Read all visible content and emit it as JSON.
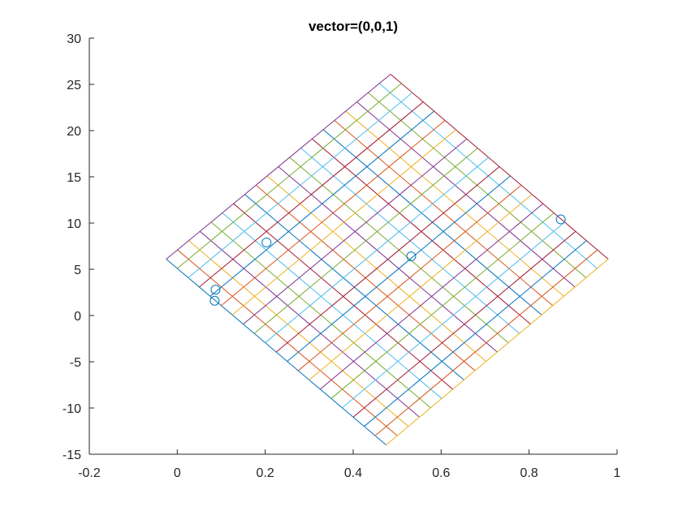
{
  "chart_data": {
    "type": "line",
    "title": "vector=(0,0,1)",
    "xlabel": "",
    "ylabel": "",
    "xlim": [
      -0.2,
      1
    ],
    "ylim": [
      -15,
      30
    ],
    "xticks": [
      -0.2,
      0,
      0.2,
      0.4,
      0.6,
      0.8,
      1
    ],
    "xtick_labels": [
      "-0.2",
      "0",
      "0.2",
      "0.4",
      "0.6",
      "0.8",
      "1"
    ],
    "yticks": [
      -15,
      -10,
      -5,
      0,
      5,
      10,
      15,
      20,
      25,
      30
    ],
    "ytick_labels": [
      "-15",
      "-10",
      "-5",
      "0",
      "5",
      "10",
      "15",
      "20",
      "25",
      "30"
    ],
    "grid": false,
    "mesh": {
      "corners": {
        "left": [
          -0.025,
          6.1
        ],
        "bottom": [
          0.475,
          -14.0
        ],
        "right": [
          0.98,
          6.1
        ],
        "top": [
          0.485,
          26.1
        ]
      },
      "divisions": 20,
      "line_colors": [
        "#0072BD",
        "#D95319",
        "#EDB120",
        "#7E2F8E",
        "#77AC30",
        "#4DBEEE",
        "#A2142F"
      ]
    },
    "series": [
      {
        "marker": "o",
        "color": "#0072BD",
        "points": [
          [
            0.085,
            1.6
          ],
          [
            0.087,
            2.8
          ],
          [
            0.203,
            7.9
          ],
          [
            0.532,
            6.4
          ],
          [
            0.872,
            10.4
          ]
        ]
      }
    ]
  }
}
